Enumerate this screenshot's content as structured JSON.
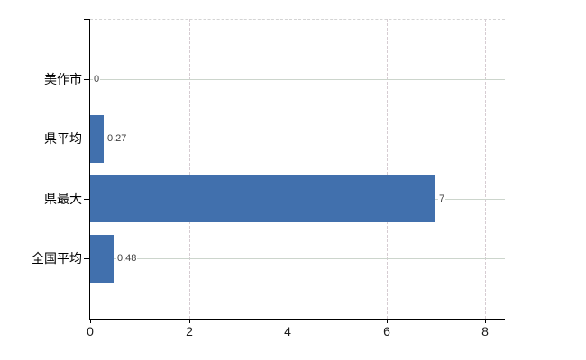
{
  "chart": {
    "bar_color": "#4170ad",
    "axis_color": "#000000",
    "vertical_grid_color": "#d6ccd2",
    "row_grid_color": "#ccd5cc",
    "value_label_color": "#404040",
    "background_color": "#ffffff"
  },
  "chart_data": {
    "type": "bar",
    "orientation": "horizontal",
    "categories": [
      "美作市",
      "県平均",
      "県最大",
      "全国平均"
    ],
    "values": [
      0,
      0.27,
      7,
      0.48
    ],
    "value_labels": [
      "0",
      "0.27",
      "7",
      "0.48"
    ],
    "xlim": [
      0,
      8.4
    ],
    "xticks": [
      0,
      2,
      4,
      6,
      8
    ],
    "xtick_labels": [
      "0",
      "2",
      "4",
      "6",
      "8"
    ],
    "grid": true,
    "legend": false
  }
}
